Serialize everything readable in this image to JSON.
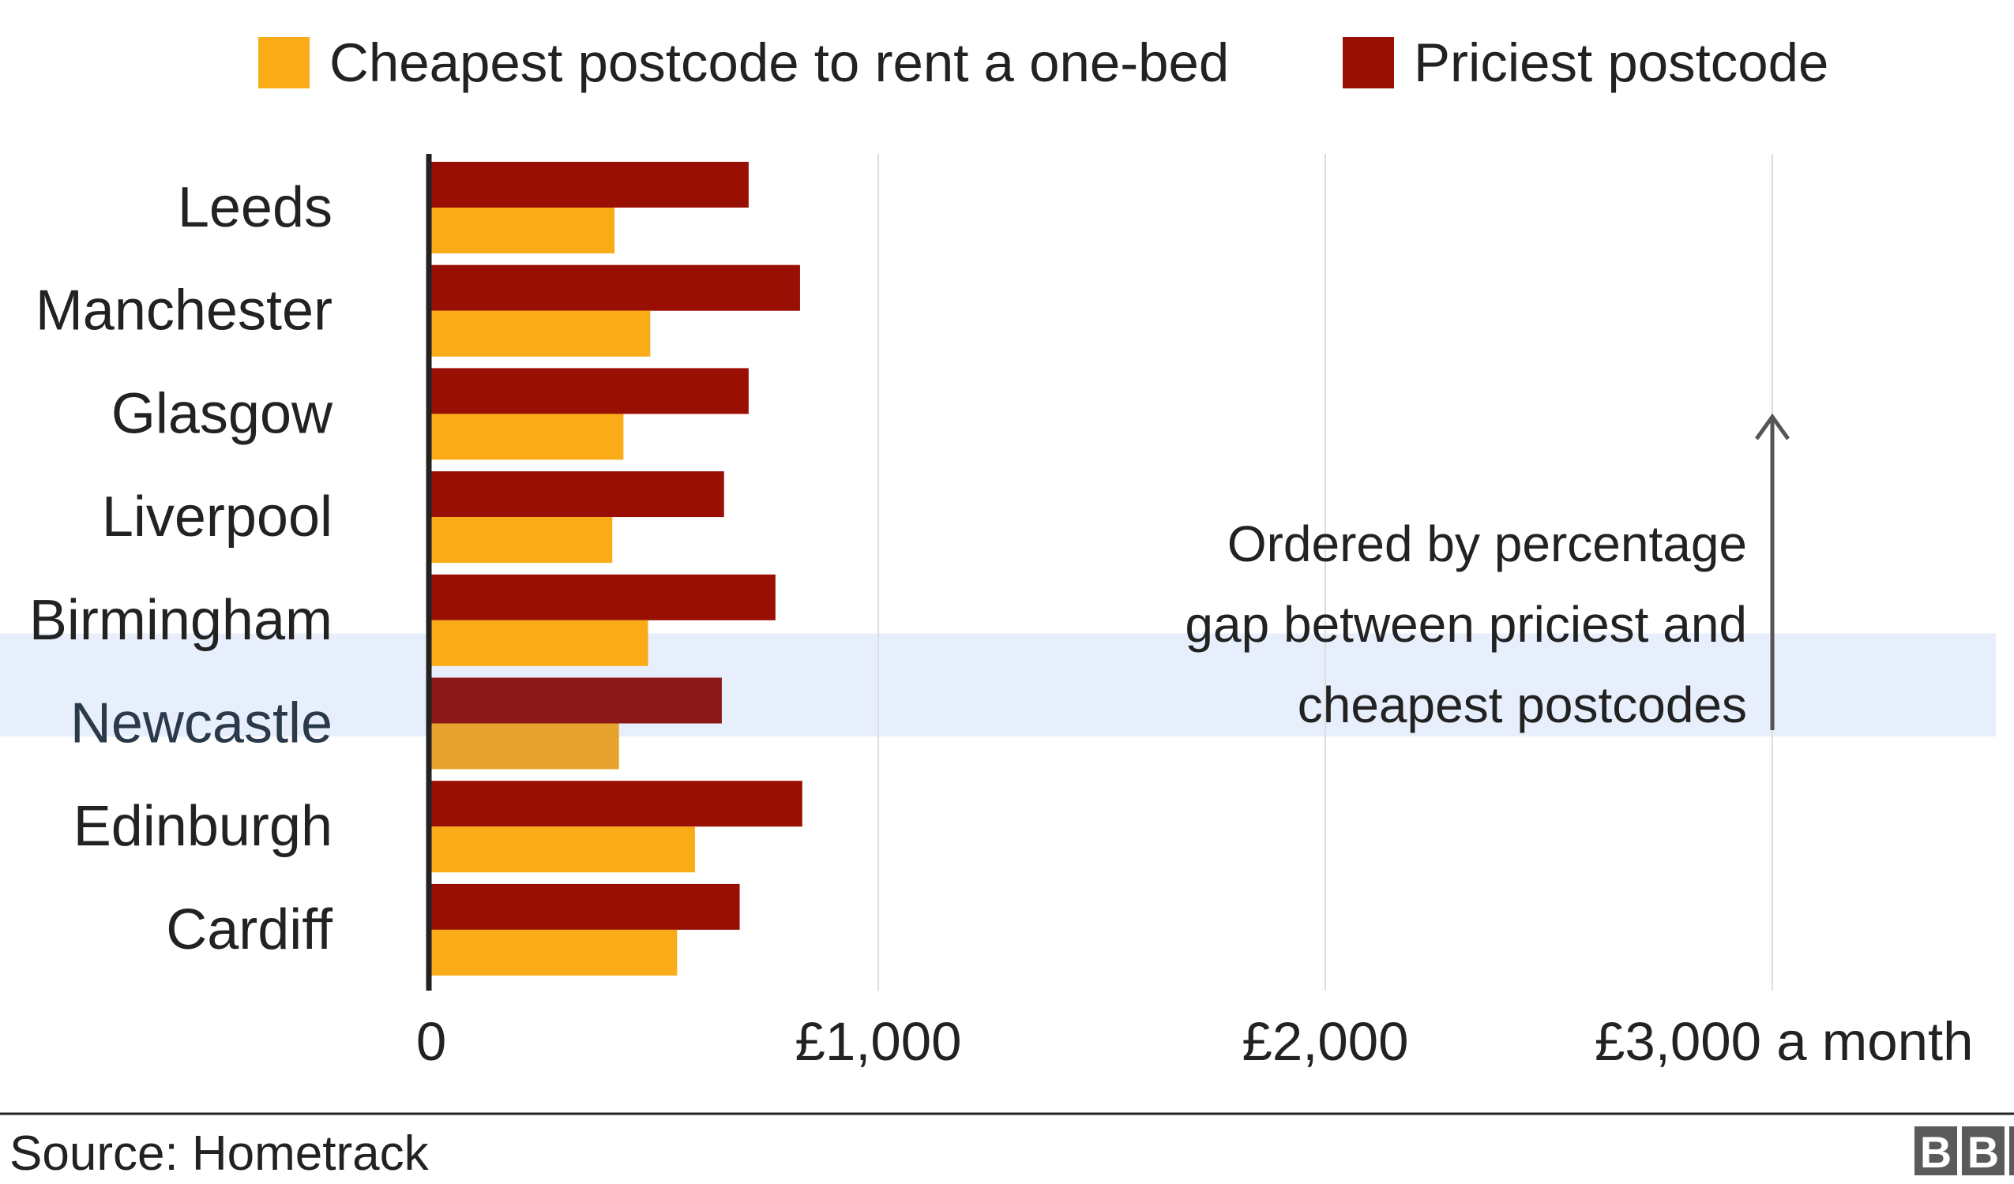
{
  "legend": {
    "cheap_label": "Cheapest postcode to rent a one-bed",
    "pricey_label": "Priciest postcode"
  },
  "annotation": {
    "lines": [
      "Ordered by percentage",
      "gap between priciest and",
      "cheapest postcodes"
    ]
  },
  "source": "Source: Hometrack",
  "logo_text": "BBC",
  "colors": {
    "cheap": "#FAAB18",
    "pricey": "#990F04",
    "cheap_highlight": "#E6A42E",
    "pricey_highlight": "#8C1818",
    "highlight_band": "#E8EFFC",
    "grid": "#DDDDDD",
    "axis": "#222222"
  },
  "chart_data": {
    "type": "bar",
    "orientation": "horizontal",
    "categories": [
      "Leeds",
      "Manchester",
      "Glasgow",
      "Liverpool",
      "Birmingham",
      "Newcastle",
      "Edinburgh",
      "Cardiff"
    ],
    "series": [
      {
        "name": "Priciest postcode",
        "values": [
          710,
          825,
          710,
          655,
          770,
          650,
          830,
          690
        ]
      },
      {
        "name": "Cheapest postcode to rent a one-bed",
        "values": [
          410,
          490,
          430,
          405,
          485,
          420,
          590,
          550
        ]
      }
    ],
    "highlight_category": "Newcastle",
    "xlim": [
      0,
      3000
    ],
    "ticks": [
      0,
      1000,
      2000,
      3000
    ],
    "tick_labels": [
      "0",
      "£1,000",
      "£2,000",
      "£3,000 a month"
    ],
    "grid": true,
    "legend_position": "top"
  }
}
